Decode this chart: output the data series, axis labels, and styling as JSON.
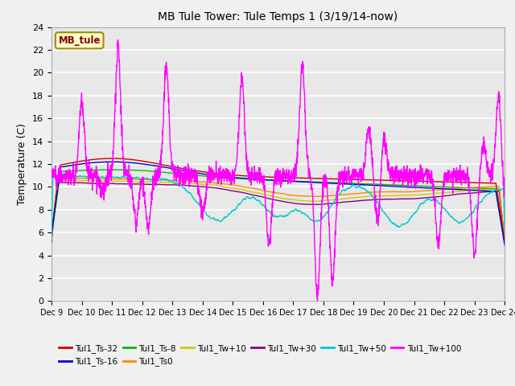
{
  "title": "MB Tule Tower: Tule Temps 1 (3/19/14-now)",
  "ylabel": "Temperature (C)",
  "xlim": [
    0,
    15
  ],
  "ylim": [
    0,
    24
  ],
  "yticks": [
    0,
    2,
    4,
    6,
    8,
    10,
    12,
    14,
    16,
    18,
    20,
    22,
    24
  ],
  "xtick_labels": [
    "Dec 9",
    "Dec 10",
    "Dec 11",
    "Dec 12",
    "Dec 13",
    "Dec 14",
    "Dec 15",
    "Dec 16",
    "Dec 17",
    "Dec 18",
    "Dec 19",
    "Dec 20",
    "Dec 21",
    "Dec 22",
    "Dec 23",
    "Dec 24"
  ],
  "bg_color": "#e8e8e8",
  "grid_color": "#ffffff",
  "fig_color": "#f0f0f0",
  "series_colors": {
    "Ts32": "#cc0000",
    "Ts16": "#0000cc",
    "Ts8": "#00bb00",
    "Ts0": "#ff8800",
    "Tw10": "#cccc00",
    "Tw30": "#880088",
    "Tw50": "#00cccc",
    "Tw100": "#ff00ff"
  },
  "legend_labels": [
    "Tul1_Ts-32",
    "Tul1_Ts-16",
    "Tul1_Ts-8",
    "Tul1_Ts0",
    "Tul1_Tw+10",
    "Tul1_Tw+30",
    "Tul1_Tw+50",
    "Tul1_Tw+100"
  ],
  "inset_label": "MB_tule",
  "inset_bg": "#ffffcc",
  "inset_border": "#aa8800"
}
